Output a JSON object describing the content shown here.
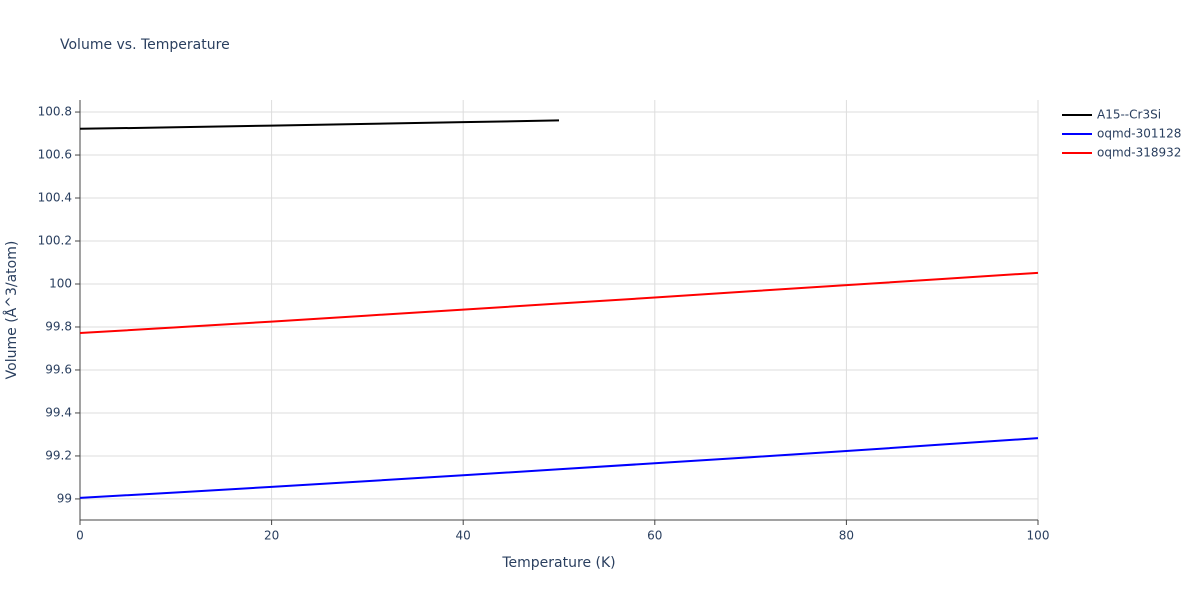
{
  "chart_data": {
    "type": "line",
    "title": "Volume vs. Temperature",
    "x_label": "Temperature (K)",
    "y_label": "Volume (Å^3/atom)",
    "x": [
      0,
      10,
      20,
      30,
      40,
      50,
      60,
      70,
      80,
      90,
      100
    ],
    "series": [
      {
        "name": "A15--Cr3Si",
        "color": "#000000",
        "values": [
          100.722,
          100.729,
          100.737,
          100.745,
          100.753,
          100.761,
          null,
          null,
          null,
          null,
          null
        ]
      },
      {
        "name": "oqmd-301128",
        "color": "#0000ff",
        "values": [
          99.005,
          99.03,
          99.056,
          99.083,
          99.11,
          99.138,
          99.166,
          99.194,
          99.223,
          99.253,
          99.283
        ]
      },
      {
        "name": "oqmd-318932",
        "color": "#ff0000",
        "values": [
          99.772,
          99.798,
          99.825,
          99.853,
          99.881,
          99.909,
          99.937,
          99.966,
          99.995,
          100.023,
          100.052
        ]
      }
    ],
    "xlim": [
      0,
      100
    ],
    "xticks": [
      0,
      20,
      40,
      60,
      80,
      100
    ],
    "ylim": [
      98.902,
      100.856
    ],
    "yticks": [
      99,
      99.2,
      99.4,
      99.6,
      99.8,
      100,
      100.2,
      100.4,
      100.6,
      100.8
    ],
    "grid": true,
    "legend": "right"
  }
}
